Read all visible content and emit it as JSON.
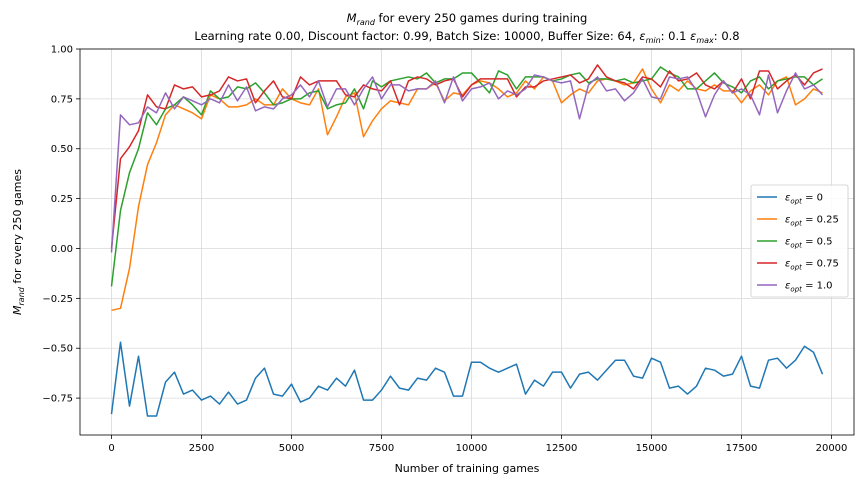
{
  "chart_data": {
    "type": "line",
    "title": "M_rand for every 250 games during training",
    "title_parts": {
      "base": "M",
      "sub": "rand",
      "rest": " for every 250 games during training"
    },
    "subtitle": "Learning rate 0.00, Discount factor: 0.99, Batch Size: 10000, Buffer Size: 64, ε_min: 0.1 ε_max: 0.8",
    "subtitle_parts": {
      "text1": "Learning rate 0.00, Discount factor: 0.99, Batch Size: 10000, Buffer Size: 64, ",
      "eps1_sub": "min",
      "text2": ": 0.1 ",
      "eps2_sub": "max",
      "text3": ": 0.8"
    },
    "xlabel": "Number of training games",
    "ylabel": "M_rand for every 250 games",
    "ylabel_parts": {
      "base": "M",
      "sub": "rand",
      "rest": " for every 250 games"
    },
    "xlim": [
      -875,
      20625
    ],
    "ylim": [
      -0.935,
      1.0
    ],
    "xticks": [
      0,
      2500,
      5000,
      7500,
      10000,
      12500,
      15000,
      17500,
      20000
    ],
    "yticks": [
      -0.75,
      -0.5,
      -0.25,
      0.0,
      0.25,
      0.5,
      0.75,
      1.0
    ],
    "grid": true,
    "legend_position": "center-right",
    "x_start": 0,
    "x_step": 250,
    "series": [
      {
        "name": "ε_opt = 0",
        "label_parts": {
          "sub": "opt",
          "value": " = 0"
        },
        "color": "#1f77b4",
        "values": [
          -0.83,
          -0.47,
          -0.79,
          -0.54,
          -0.84,
          -0.84,
          -0.67,
          -0.62,
          -0.73,
          -0.71,
          -0.76,
          -0.74,
          -0.78,
          -0.72,
          -0.78,
          -0.76,
          -0.65,
          -0.6,
          -0.73,
          -0.74,
          -0.68,
          -0.77,
          -0.75,
          -0.69,
          -0.71,
          -0.65,
          -0.69,
          -0.61,
          -0.76,
          -0.76,
          -0.71,
          -0.64,
          -0.7,
          -0.71,
          -0.65,
          -0.66,
          -0.6,
          -0.62,
          -0.74,
          -0.74,
          -0.57,
          -0.57,
          -0.6,
          -0.62,
          -0.6,
          -0.58,
          -0.73,
          -0.66,
          -0.69,
          -0.62,
          -0.62,
          -0.7,
          -0.63,
          -0.62,
          -0.66,
          -0.61,
          -0.56,
          -0.56,
          -0.64,
          -0.65,
          -0.55,
          -0.57,
          -0.7,
          -0.69,
          -0.73,
          -0.69,
          -0.6,
          -0.61,
          -0.64,
          -0.63,
          -0.54,
          -0.69,
          -0.7,
          -0.56,
          -0.55,
          -0.6,
          -0.56,
          -0.49,
          -0.52,
          -0.63
        ]
      },
      {
        "name": "ε_opt = 0.25",
        "label_parts": {
          "sub": "opt",
          "value": " = 0.25"
        },
        "color": "#ff7f0e",
        "values": [
          -0.31,
          -0.3,
          -0.1,
          0.21,
          0.42,
          0.53,
          0.67,
          0.72,
          0.7,
          0.68,
          0.65,
          0.77,
          0.75,
          0.71,
          0.71,
          0.72,
          0.75,
          0.72,
          0.72,
          0.8,
          0.75,
          0.73,
          0.72,
          0.8,
          0.57,
          0.66,
          0.76,
          0.78,
          0.56,
          0.64,
          0.7,
          0.74,
          0.73,
          0.72,
          0.8,
          0.8,
          0.83,
          0.74,
          0.78,
          0.77,
          0.82,
          0.84,
          0.83,
          0.8,
          0.76,
          0.78,
          0.84,
          0.8,
          0.86,
          0.84,
          0.73,
          0.77,
          0.8,
          0.78,
          0.84,
          0.85,
          0.84,
          0.82,
          0.83,
          0.9,
          0.8,
          0.73,
          0.82,
          0.79,
          0.84,
          0.8,
          0.79,
          0.82,
          0.79,
          0.79,
          0.73,
          0.79,
          0.82,
          0.77,
          0.84,
          0.86,
          0.72,
          0.75,
          0.8,
          0.78
        ]
      },
      {
        "name": "ε_opt = 0.5",
        "label_parts": {
          "sub": "opt",
          "value": " = 0.5"
        },
        "color": "#2ca02c",
        "values": [
          -0.19,
          0.19,
          0.38,
          0.5,
          0.68,
          0.62,
          0.7,
          0.72,
          0.76,
          0.72,
          0.67,
          0.79,
          0.75,
          0.76,
          0.81,
          0.8,
          0.83,
          0.78,
          0.72,
          0.73,
          0.75,
          0.75,
          0.78,
          0.79,
          0.7,
          0.72,
          0.73,
          0.8,
          0.7,
          0.84,
          0.81,
          0.84,
          0.85,
          0.86,
          0.85,
          0.88,
          0.83,
          0.85,
          0.85,
          0.88,
          0.88,
          0.83,
          0.78,
          0.89,
          0.87,
          0.8,
          0.86,
          0.86,
          0.86,
          0.84,
          0.85,
          0.87,
          0.88,
          0.83,
          0.85,
          0.85,
          0.84,
          0.85,
          0.83,
          0.84,
          0.85,
          0.91,
          0.88,
          0.86,
          0.8,
          0.8,
          0.84,
          0.88,
          0.83,
          0.81,
          0.78,
          0.84,
          0.86,
          0.8,
          0.84,
          0.85,
          0.86,
          0.86,
          0.82,
          0.85
        ]
      },
      {
        "name": "ε_opt = 0.75",
        "label_parts": {
          "sub": "opt",
          "value": " = 0.75"
        },
        "color": "#d62728",
        "values": [
          0.0,
          0.45,
          0.51,
          0.59,
          0.77,
          0.71,
          0.7,
          0.82,
          0.8,
          0.81,
          0.76,
          0.77,
          0.79,
          0.86,
          0.84,
          0.85,
          0.73,
          0.79,
          0.84,
          0.76,
          0.75,
          0.86,
          0.82,
          0.84,
          0.84,
          0.84,
          0.77,
          0.76,
          0.82,
          0.8,
          0.79,
          0.84,
          0.72,
          0.84,
          0.86,
          0.85,
          0.82,
          0.84,
          0.85,
          0.76,
          0.82,
          0.85,
          0.85,
          0.85,
          0.85,
          0.76,
          0.81,
          0.81,
          0.84,
          0.85,
          0.86,
          0.87,
          0.83,
          0.85,
          0.92,
          0.86,
          0.84,
          0.83,
          0.8,
          0.86,
          0.85,
          0.81,
          0.89,
          0.84,
          0.85,
          0.88,
          0.82,
          0.8,
          0.84,
          0.78,
          0.85,
          0.75,
          0.89,
          0.89,
          0.8,
          0.84,
          0.87,
          0.82,
          0.88,
          0.9
        ]
      },
      {
        "name": "ε_opt = 1.0",
        "label_parts": {
          "sub": "opt",
          "value": " = 1.0"
        },
        "color": "#9467bd",
        "values": [
          -0.02,
          0.67,
          0.62,
          0.63,
          0.71,
          0.68,
          0.78,
          0.7,
          0.76,
          0.74,
          0.72,
          0.75,
          0.73,
          0.82,
          0.74,
          0.81,
          0.69,
          0.71,
          0.7,
          0.75,
          0.77,
          0.82,
          0.76,
          0.84,
          0.71,
          0.8,
          0.8,
          0.72,
          0.8,
          0.86,
          0.75,
          0.82,
          0.82,
          0.79,
          0.8,
          0.8,
          0.84,
          0.73,
          0.86,
          0.74,
          0.8,
          0.81,
          0.83,
          0.75,
          0.79,
          0.77,
          0.8,
          0.87,
          0.86,
          0.84,
          0.83,
          0.84,
          0.65,
          0.82,
          0.86,
          0.79,
          0.8,
          0.74,
          0.78,
          0.85,
          0.76,
          0.75,
          0.86,
          0.85,
          0.86,
          0.79,
          0.66,
          0.77,
          0.84,
          0.78,
          0.8,
          0.77,
          0.67,
          0.87,
          0.68,
          0.79,
          0.88,
          0.8,
          0.82,
          0.77
        ]
      }
    ]
  }
}
